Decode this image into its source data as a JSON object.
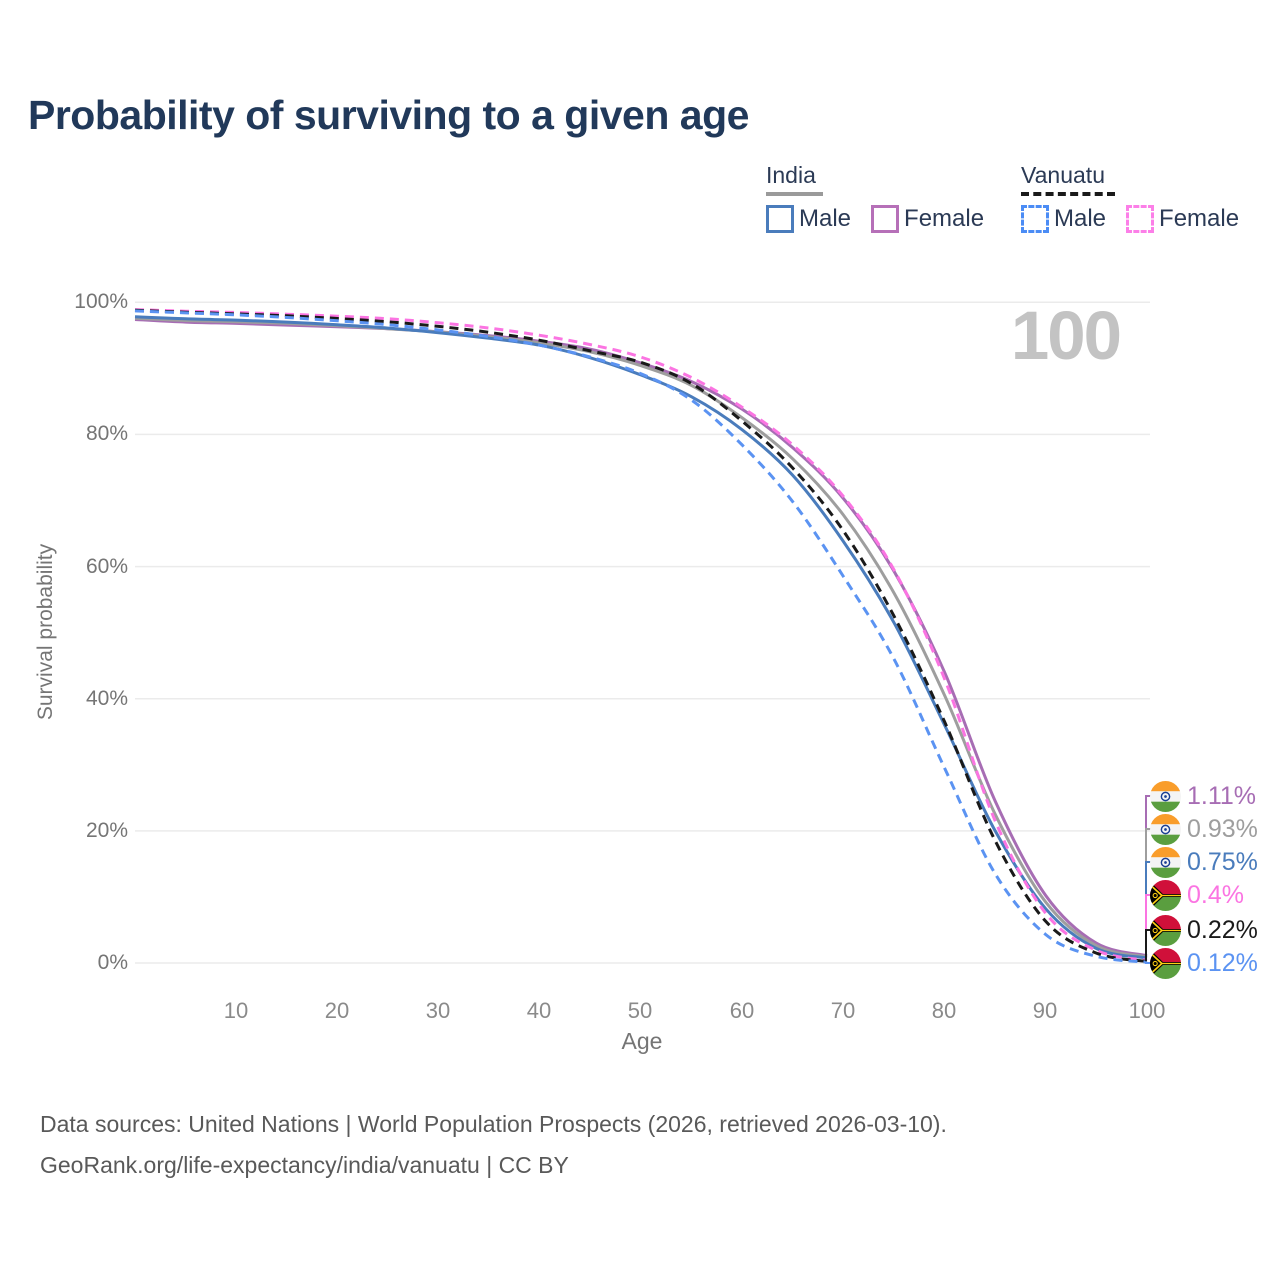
{
  "title": "Probability of surviving to a given age",
  "watermark": "100",
  "legend": {
    "groups": [
      {
        "country": "India",
        "underline_style": "solid",
        "underline_color": "#9a9a9a",
        "items": [
          {
            "label": "Male",
            "color": "#4a7cbc",
            "dashed": false
          },
          {
            "label": "Female",
            "color": "#b670b8",
            "dashed": false
          }
        ]
      },
      {
        "country": "Vanuatu",
        "underline_style": "dashed",
        "underline_color": "#1a1a1a",
        "items": [
          {
            "label": "Male",
            "color": "#4b8cf5",
            "dashed": true
          },
          {
            "label": "Female",
            "color": "#fc7fe8",
            "dashed": true
          }
        ]
      }
    ]
  },
  "chart_data": {
    "type": "line",
    "title": "Probability of surviving to a given age",
    "xlabel": "Age",
    "ylabel": "Survival probability",
    "xlim": [
      0,
      100
    ],
    "ylim": [
      0,
      100
    ],
    "grid": "horizontal",
    "x_tick_labels": [
      "10",
      "20",
      "30",
      "40",
      "50",
      "60",
      "70",
      "80",
      "90",
      "100"
    ],
    "x_tick_values": [
      10,
      20,
      30,
      40,
      50,
      60,
      70,
      80,
      90,
      100
    ],
    "y_tick_labels": [
      "100%",
      "80%",
      "60%",
      "40%",
      "20%",
      "0%"
    ],
    "y_tick_values": [
      100,
      80,
      60,
      40,
      20,
      0
    ],
    "x": [
      0,
      5,
      10,
      15,
      20,
      25,
      30,
      35,
      40,
      45,
      50,
      55,
      60,
      65,
      70,
      75,
      80,
      85,
      90,
      95,
      100
    ],
    "series": [
      {
        "name": "India Female",
        "country": "India",
        "sex": "Female",
        "color": "#a76db4",
        "dashed": false,
        "flag": "india",
        "end_label": "1.11%",
        "end_value": 1.11,
        "values": [
          97.4,
          97.0,
          96.8,
          96.55,
          96.3,
          96.0,
          95.55,
          94.95,
          94.1,
          92.9,
          90.8,
          88.0,
          83.8,
          78.0,
          70.3,
          59.3,
          44.0,
          24.5,
          10.2,
          3.0,
          1.11
        ]
      },
      {
        "name": "India Both sexes",
        "country": "India",
        "sex": "Both",
        "color": "#9e9e9e",
        "dashed": false,
        "flag": "india",
        "end_label": "0.93%",
        "end_value": 0.93,
        "values": [
          97.6,
          97.25,
          97.05,
          96.8,
          96.45,
          96.0,
          95.5,
          94.8,
          93.85,
          92.5,
          90.4,
          87.4,
          82.5,
          76.3,
          67.8,
          56.0,
          40.5,
          22.5,
          9.2,
          2.6,
          0.93
        ]
      },
      {
        "name": "India Male",
        "country": "India",
        "sex": "Male",
        "color": "#4a7cbc",
        "dashed": false,
        "flag": "india",
        "end_label": "0.75%",
        "end_value": 0.75,
        "values": [
          97.8,
          97.5,
          97.3,
          97.0,
          96.6,
          96.1,
          95.4,
          94.55,
          93.5,
          91.6,
          89.0,
          85.7,
          80.7,
          73.8,
          63.8,
          51.5,
          36.0,
          20.0,
          8.2,
          2.2,
          0.75
        ]
      },
      {
        "name": "Vanuatu Female",
        "country": "Vanuatu",
        "sex": "Female",
        "color": "#fb74e2",
        "dashed": true,
        "flag": "vanuatu",
        "end_label": "0.4%",
        "end_value": 0.4,
        "values": [
          98.9,
          98.65,
          98.45,
          98.2,
          97.9,
          97.5,
          96.9,
          96.1,
          95.0,
          93.6,
          91.7,
          88.6,
          84.1,
          78.4,
          70.6,
          59.5,
          43.0,
          21.5,
          7.5,
          1.9,
          0.4
        ]
      },
      {
        "name": "Vanuatu Both sexes",
        "country": "Vanuatu",
        "sex": "Both",
        "color": "#1a1a1a",
        "dashed": true,
        "flag": "vanuatu",
        "end_label": "0.22%",
        "end_value": 0.22,
        "values": [
          98.8,
          98.5,
          98.25,
          97.95,
          97.55,
          97.05,
          96.35,
          95.45,
          94.25,
          92.65,
          90.9,
          87.7,
          82.0,
          74.9,
          65.4,
          52.5,
          36.5,
          18.5,
          6.3,
          1.5,
          0.22
        ]
      },
      {
        "name": "Vanuatu Male",
        "country": "Vanuatu",
        "sex": "Male",
        "color": "#5b93f2",
        "dashed": true,
        "flag": "vanuatu",
        "end_label": "0.12%",
        "end_value": 0.12,
        "values": [
          98.7,
          98.4,
          98.1,
          97.7,
          97.2,
          96.6,
          95.8,
          94.8,
          93.5,
          91.7,
          89.2,
          85.2,
          78.4,
          69.8,
          58.5,
          46.0,
          29.5,
          13.5,
          4.3,
          1.0,
          0.12
        ]
      }
    ]
  },
  "footer": {
    "line1": "Data sources: United Nations | World Population Prospects (2026, retrieved 2026-03-10).",
    "line2": "GeoRank.org/life-expectancy/india/vanuatu | CC BY"
  }
}
